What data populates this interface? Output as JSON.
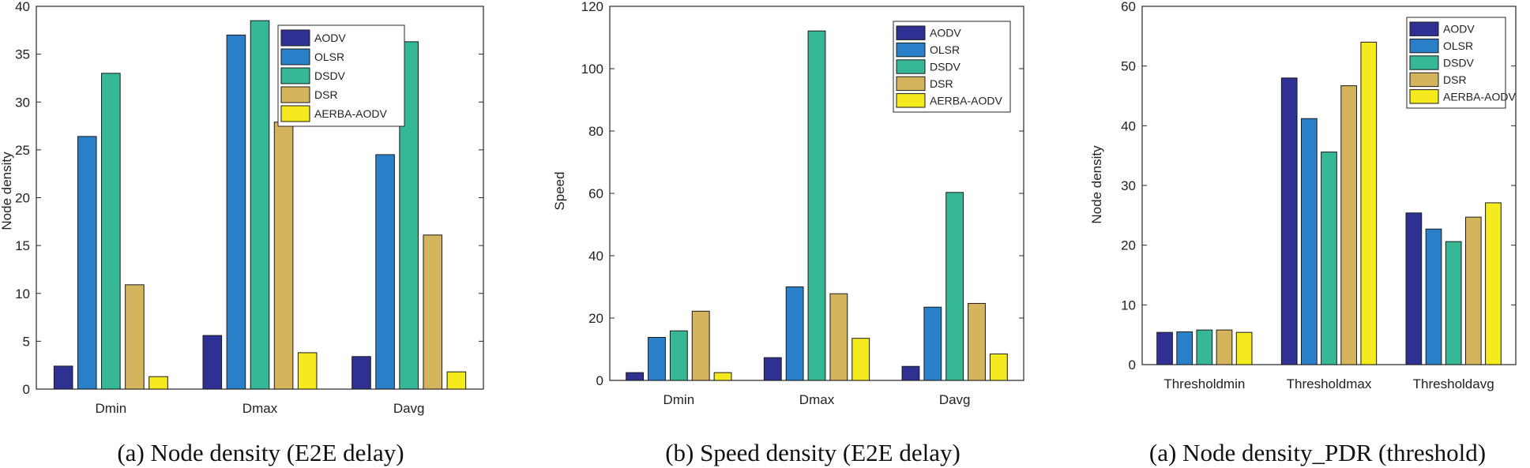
{
  "colors": {
    "AODV": "#2e3192",
    "OLSR": "#2a80c8",
    "DSDV": "#36b795",
    "DSR": "#d4b45c",
    "AERBA-AODV": "#f4ea1e"
  },
  "chart_data": [
    {
      "type": "bar",
      "title": "",
      "caption": "(a) Node density (E2E delay)",
      "xlabel": "",
      "ylabel": "Node density",
      "categories": [
        "Dmin",
        "Dmax",
        "Davg"
      ],
      "ylim": [
        0,
        40
      ],
      "yticks": [
        0,
        5,
        10,
        15,
        20,
        25,
        30,
        35,
        40
      ],
      "grid": false,
      "legend_position": "top-right",
      "series": [
        {
          "name": "AODV",
          "values": [
            2.4,
            5.6,
            3.4
          ]
        },
        {
          "name": "OLSR",
          "values": [
            26.4,
            37.0,
            24.5
          ]
        },
        {
          "name": "DSDV",
          "values": [
            33.0,
            38.5,
            36.3
          ]
        },
        {
          "name": "DSR",
          "values": [
            10.9,
            27.9,
            16.1
          ]
        },
        {
          "name": "AERBA-AODV",
          "values": [
            1.3,
            3.8,
            1.8
          ]
        }
      ]
    },
    {
      "type": "bar",
      "title": "",
      "caption": "(b) Speed density (E2E delay)",
      "xlabel": "",
      "ylabel": "Speed",
      "categories": [
        "Dmin",
        "Dmax",
        "Davg"
      ],
      "ylim": [
        0,
        120
      ],
      "yticks": [
        0,
        20,
        40,
        60,
        80,
        100,
        120
      ],
      "grid": false,
      "legend_position": "top-right",
      "series": [
        {
          "name": "AODV",
          "values": [
            2.5,
            7.3,
            4.5
          ]
        },
        {
          "name": "OLSR",
          "values": [
            13.8,
            30.0,
            23.5
          ]
        },
        {
          "name": "DSDV",
          "values": [
            15.9,
            112.1,
            60.3
          ]
        },
        {
          "name": "DSR",
          "values": [
            22.2,
            27.8,
            24.7
          ]
        },
        {
          "name": "AERBA-AODV",
          "values": [
            2.5,
            13.5,
            8.5
          ]
        }
      ]
    },
    {
      "type": "bar",
      "title": "",
      "caption": "(a) Node density_PDR (threshold)",
      "xlabel": "",
      "ylabel": "Node density",
      "categories": [
        "Thresholdmin",
        "Thresholdmax",
        "Thresholdavg"
      ],
      "ylim": [
        0,
        60
      ],
      "yticks": [
        0,
        10,
        20,
        30,
        40,
        50,
        60
      ],
      "grid": false,
      "legend_position": "top-right",
      "series": [
        {
          "name": "AODV",
          "values": [
            5.4,
            48.0,
            25.4
          ]
        },
        {
          "name": "OLSR",
          "values": [
            5.5,
            41.2,
            22.7
          ]
        },
        {
          "name": "DSDV",
          "values": [
            5.8,
            35.6,
            20.6
          ]
        },
        {
          "name": "DSR",
          "values": [
            5.8,
            46.7,
            24.7
          ]
        },
        {
          "name": "AERBA-AODV",
          "values": [
            5.4,
            54.0,
            27.1
          ]
        }
      ]
    }
  ]
}
